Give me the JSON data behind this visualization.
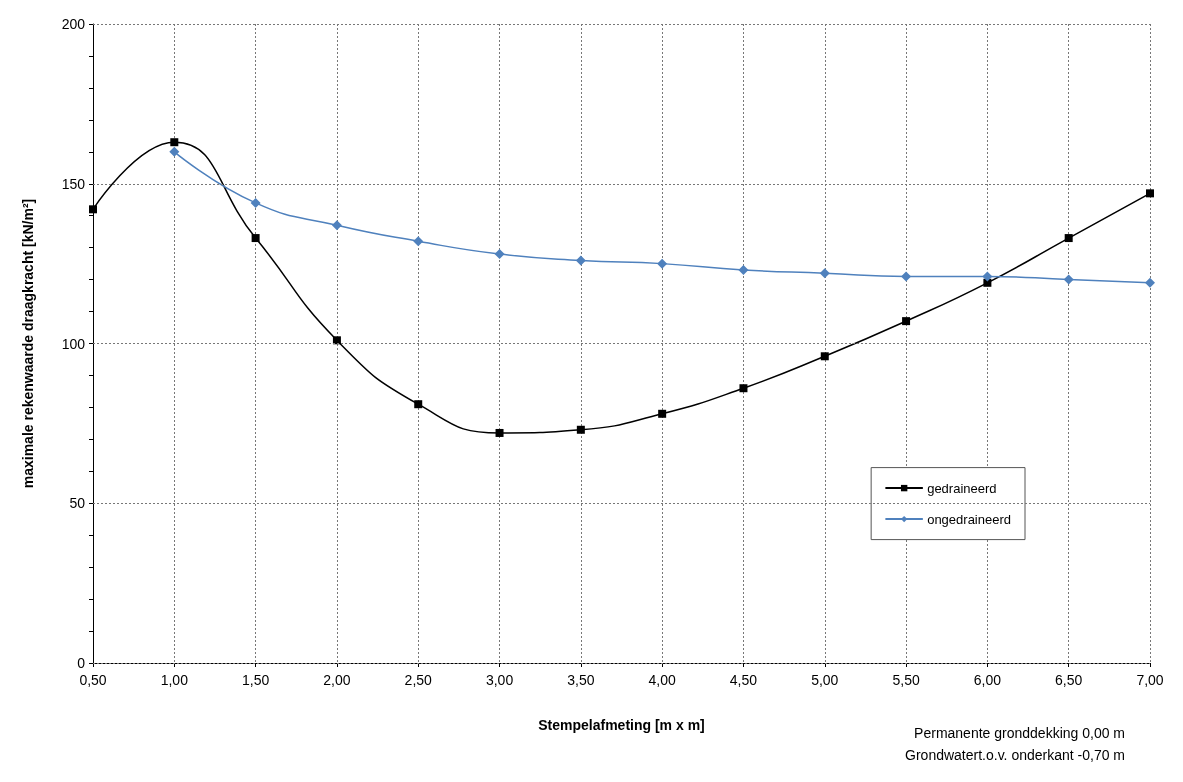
{
  "chart_data": {
    "type": "line",
    "xlabel": "Stempelafmeting [m x m]",
    "ylabel": "maximale rekenwaarde draagkracht [kN/m²]",
    "series": [
      {
        "name": "gedraineerd",
        "color": "#000000",
        "marker": "square",
        "x": [
          0.5,
          1.0,
          1.5,
          2.0,
          2.5,
          3.0,
          3.5,
          4.0,
          4.5,
          5.0,
          5.5,
          6.0,
          6.5,
          7.0
        ],
        "values": [
          142,
          163,
          133,
          101,
          81,
          72,
          73,
          78,
          86,
          96,
          107,
          119,
          133,
          147
        ]
      },
      {
        "name": "ongedraineerd",
        "color": "#4f81bd",
        "marker": "diamond",
        "x": [
          1.0,
          1.5,
          2.0,
          2.5,
          3.0,
          3.5,
          4.0,
          4.5,
          5.0,
          5.5,
          6.0,
          6.5,
          7.0
        ],
        "values": [
          160,
          144,
          137,
          132,
          128,
          126,
          125,
          123,
          122,
          121,
          121,
          120,
          119
        ]
      }
    ],
    "xlim": [
      0.5,
      7.0
    ],
    "xticks": [
      {
        "value": 0.5,
        "label": "0,50"
      },
      {
        "value": 1.0,
        "label": "1,00"
      },
      {
        "value": 1.5,
        "label": "1,50"
      },
      {
        "value": 2.0,
        "label": "2,00"
      },
      {
        "value": 2.5,
        "label": "2,50"
      },
      {
        "value": 3.0,
        "label": "3,00"
      },
      {
        "value": 3.5,
        "label": "3,50"
      },
      {
        "value": 4.0,
        "label": "4,00"
      },
      {
        "value": 4.5,
        "label": "4,50"
      },
      {
        "value": 5.0,
        "label": "5,00"
      },
      {
        "value": 5.5,
        "label": "5,50"
      },
      {
        "value": 6.0,
        "label": "6,00"
      },
      {
        "value": 6.5,
        "label": "6,50"
      },
      {
        "value": 7.0,
        "label": "7,00"
      }
    ],
    "ylim": [
      0,
      200
    ],
    "yticks": [
      0,
      {
        "value": 10,
        "label": null
      },
      {
        "value": 20,
        "label": null
      },
      {
        "value": 30,
        "label": null
      },
      {
        "value": 40,
        "label": null
      },
      50,
      {
        "value": 60,
        "label": null
      },
      {
        "value": 70,
        "label": null
      },
      {
        "value": 80,
        "label": null
      },
      {
        "value": 90,
        "label": null
      },
      100,
      {
        "value": 110,
        "label": null
      },
      {
        "value": 120,
        "label": null
      },
      {
        "value": 130,
        "label": null
      },
      {
        "value": 140,
        "label": null
      },
      150,
      {
        "value": 160,
        "label": null
      },
      {
        "value": 170,
        "label": null
      },
      {
        "value": 180,
        "label": null
      },
      {
        "value": 190,
        "label": null
      },
      200
    ],
    "grid": true,
    "legend": "right",
    "line_style": "solid",
    "annotations": [
      "Permanente gronddekking 0,00 m",
      "Grondwatert.o.v. onderkant -0,70 m"
    ]
  }
}
